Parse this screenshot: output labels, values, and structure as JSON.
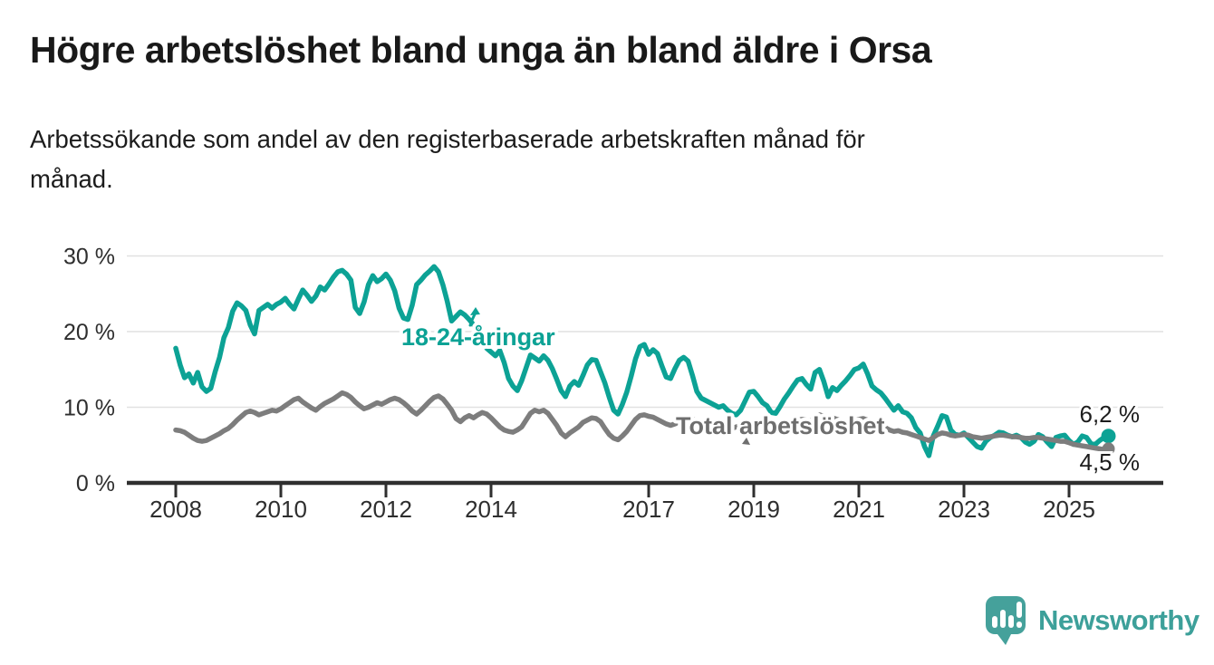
{
  "header": {
    "title": "Högre arbetslöshet bland unga än bland äldre i Orsa",
    "subtitle": "Arbetssökande som andel av den registerbaserade arbetskraften månad för\nmånad."
  },
  "footer": {
    "brand": "Newsworthy"
  },
  "colors": {
    "young_line": "#0ca295",
    "total_line": "#7d7d7d",
    "total_label": "#6e6e6e",
    "axis": "#2f2f2f",
    "gridline": "#e1e1e1",
    "tick_text": "#2e2e2e",
    "end_label_text": "#1d1d1d",
    "logo_teal": "#45a19b"
  },
  "chart_data": {
    "type": "line",
    "title": "Högre arbetslöshet bland unga än bland äldre i Orsa",
    "subtitle": "Arbetssökande som andel av den registerbaserade arbetskraften månad för månad.",
    "x_start": "2008-01",
    "x_end": "2025-10",
    "months_per_point": 1,
    "ylim": [
      0,
      32
    ],
    "grid": "horizontal",
    "legend_position": "inline-annotations",
    "y_ticks": [
      {
        "label": "30 %",
        "value": 30
      },
      {
        "label": "20 %",
        "value": 20
      },
      {
        "label": "10 %",
        "value": 10
      },
      {
        "label": "0 %",
        "value": 0
      }
    ],
    "x_ticks": [
      {
        "label": "2008",
        "year": 2008
      },
      {
        "label": "2010",
        "year": 2010
      },
      {
        "label": "2012",
        "year": 2012
      },
      {
        "label": "2014",
        "year": 2014
      },
      {
        "label": "2017",
        "year": 2017
      },
      {
        "label": "2019",
        "year": 2019
      },
      {
        "label": "2021",
        "year": 2021
      },
      {
        "label": "2023",
        "year": 2023
      },
      {
        "label": "2025",
        "year": 2025
      }
    ],
    "series": [
      {
        "name": "18-24-åringar",
        "label": "18-24-åringar",
        "color": "#0ca295",
        "end_label": "6,2 %",
        "end_value": 6.2,
        "values": [
          17.8,
          15.6,
          13.9,
          14.4,
          13.2,
          14.6,
          12.7,
          12.1,
          12.5,
          14.7,
          16.6,
          19.2,
          20.5,
          22.7,
          23.8,
          23.4,
          22.8,
          20.9,
          19.7,
          22.8,
          23.2,
          23.6,
          23.1,
          23.6,
          23.9,
          24.4,
          23.6,
          23.0,
          24.3,
          25.5,
          24.8,
          24.0,
          24.7,
          25.9,
          25.5,
          26.3,
          27.2,
          27.9,
          28.1,
          27.6,
          26.8,
          23.2,
          22.4,
          23.9,
          26.2,
          27.4,
          26.6,
          27.0,
          27.6,
          26.8,
          25.4,
          23.1,
          21.8,
          21.6,
          23.5,
          26.2,
          26.8,
          27.5,
          28.0,
          28.6,
          27.9,
          26.2,
          24.0,
          21.4,
          22.0,
          22.6,
          22.2,
          21.6,
          20.9,
          20.2,
          19.0,
          17.8,
          17.3,
          16.8,
          17.5,
          15.9,
          13.8,
          12.8,
          12.2,
          13.5,
          15.2,
          16.9,
          16.5,
          16.1,
          16.8,
          16.2,
          15.1,
          13.7,
          12.2,
          11.4,
          12.8,
          13.4,
          12.9,
          14.2,
          15.6,
          16.3,
          16.2,
          14.7,
          13.2,
          11.3,
          9.6,
          9.1,
          10.4,
          12.0,
          14.1,
          16.4,
          18.0,
          18.3,
          17.0,
          17.6,
          17.1,
          15.5,
          14.0,
          13.8,
          15.1,
          16.2,
          16.6,
          16.1,
          14.2,
          12.1,
          11.2,
          10.9,
          10.6,
          10.3,
          10.0,
          10.2,
          9.6,
          9.2,
          9.0,
          9.6,
          10.8,
          12.0,
          12.1,
          11.4,
          10.6,
          10.2,
          9.3,
          9.2,
          10.1,
          11.1,
          11.9,
          12.8,
          13.6,
          13.8,
          13.0,
          12.4,
          14.6,
          15.0,
          13.4,
          11.4,
          12.6,
          12.2,
          12.9,
          13.5,
          14.2,
          15.0,
          15.2,
          15.7,
          14.4,
          12.8,
          12.3,
          11.9,
          11.2,
          10.4,
          9.6,
          10.2,
          9.4,
          9.2,
          8.6,
          7.3,
          6.6,
          4.8,
          3.6,
          6.2,
          7.5,
          8.9,
          8.7,
          7.0,
          6.4,
          6.3,
          6.6,
          6.0,
          5.4,
          4.8,
          4.6,
          5.5,
          6.0,
          6.3,
          6.7,
          6.6,
          6.3,
          6.1,
          6.3,
          6.0,
          5.4,
          5.1,
          5.5,
          6.4,
          6.1,
          5.4,
          4.8,
          6.0,
          6.2,
          6.3,
          5.6,
          5.1,
          5.4,
          6.2,
          6.0,
          5.2,
          5.1,
          5.6,
          6.0,
          6.2
        ]
      },
      {
        "name": "Total arbetslöshet",
        "label": "Total arbetslöshet",
        "color": "#7d7d7d",
        "end_label": "4,5 %",
        "end_value": 4.5,
        "values": [
          7.0,
          6.9,
          6.7,
          6.3,
          5.9,
          5.6,
          5.5,
          5.6,
          5.9,
          6.2,
          6.5,
          6.9,
          7.2,
          7.7,
          8.3,
          8.8,
          9.3,
          9.5,
          9.3,
          9.0,
          9.2,
          9.4,
          9.6,
          9.5,
          9.8,
          10.2,
          10.6,
          11.0,
          11.2,
          10.7,
          10.3,
          9.9,
          9.6,
          10.1,
          10.5,
          10.8,
          11.1,
          11.5,
          11.9,
          11.7,
          11.3,
          10.7,
          10.2,
          9.8,
          10.0,
          10.3,
          10.6,
          10.4,
          10.7,
          11.0,
          11.2,
          11.0,
          10.6,
          10.1,
          9.5,
          9.1,
          9.6,
          10.2,
          10.8,
          11.3,
          11.5,
          11.1,
          10.4,
          9.6,
          8.5,
          8.1,
          8.6,
          8.9,
          8.6,
          9.0,
          9.3,
          9.1,
          8.6,
          8.0,
          7.4,
          7.0,
          6.8,
          6.7,
          7.0,
          7.4,
          8.3,
          9.2,
          9.6,
          9.4,
          9.6,
          9.2,
          8.4,
          7.6,
          6.6,
          6.1,
          6.6,
          7.0,
          7.4,
          8.0,
          8.3,
          8.6,
          8.5,
          8.1,
          7.2,
          6.4,
          5.9,
          5.7,
          6.2,
          6.8,
          7.6,
          8.4,
          8.9,
          9.0,
          8.8,
          8.7,
          8.4,
          8.1,
          7.8,
          7.6,
          7.8,
          8.1,
          8.3,
          8.5,
          8.4,
          8.2,
          8.0,
          7.8,
          7.6,
          7.4,
          7.2,
          7.1,
          7.0,
          7.2,
          7.4,
          7.6,
          7.8,
          8.0,
          8.1,
          8.0,
          7.8,
          7.6,
          7.4,
          7.3,
          7.5,
          7.7,
          7.9,
          8.1,
          8.3,
          8.4,
          8.3,
          8.2,
          8.6,
          9.0,
          8.8,
          8.5,
          8.6,
          8.4,
          8.2,
          8.0,
          8.1,
          8.3,
          8.4,
          8.5,
          8.3,
          8.0,
          7.8,
          7.6,
          7.3,
          7.0,
          6.8,
          6.9,
          6.7,
          6.6,
          6.4,
          6.2,
          6.0,
          5.8,
          5.6,
          6.0,
          6.4,
          6.6,
          6.5,
          6.3,
          6.2,
          6.3,
          6.4,
          6.3,
          6.1,
          6.0,
          5.9,
          6.0,
          6.1,
          6.2,
          6.3,
          6.3,
          6.2,
          6.1,
          6.1,
          6.0,
          5.9,
          5.9,
          6.0,
          6.0,
          5.9,
          5.8,
          5.7,
          5.6,
          5.5,
          5.5,
          5.3,
          5.1,
          5.0,
          4.9,
          4.8,
          4.7,
          4.6,
          4.5,
          4.4,
          4.5
        ]
      }
    ]
  }
}
